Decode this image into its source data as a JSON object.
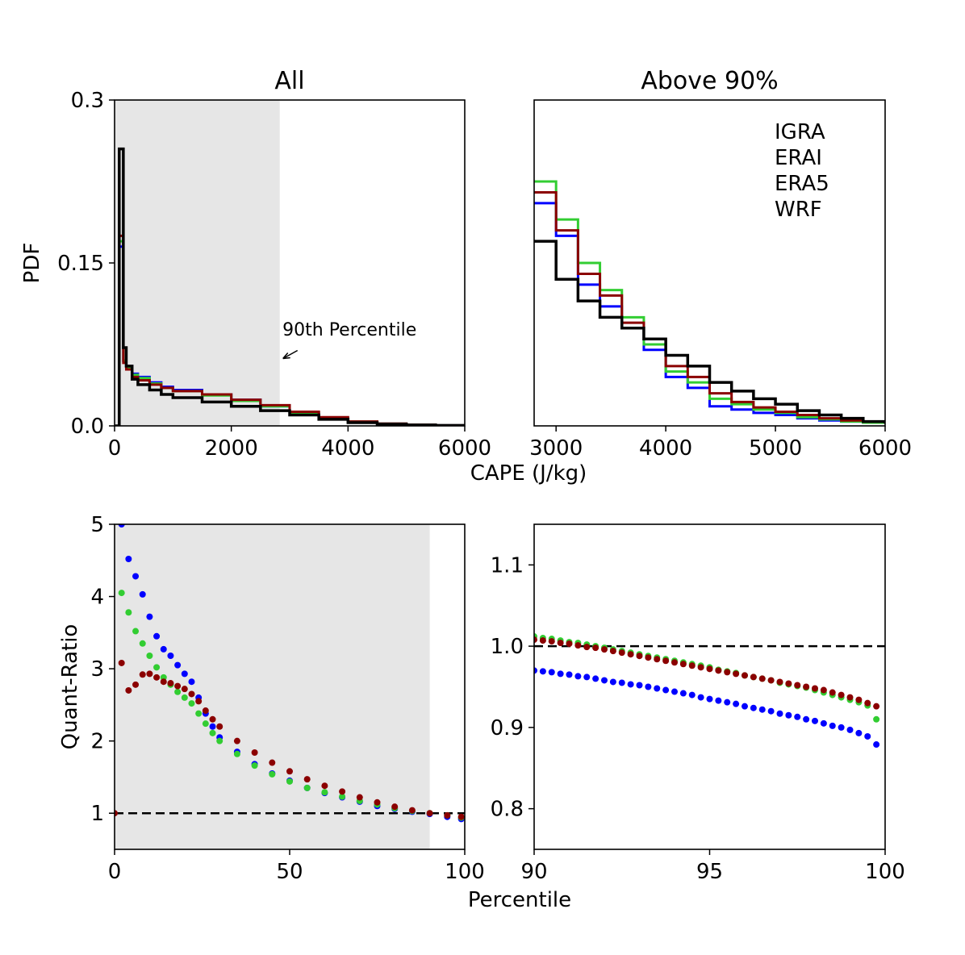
{
  "colors": {
    "IGRA": "#000000",
    "ERAI": "#0000ff",
    "ERA5": "#32cd32",
    "WRF": "#8b0000",
    "shade": "#e6e6e6"
  },
  "chart_data": [
    {
      "id": "top-left",
      "type": "line",
      "step": true,
      "title": "All",
      "xlabel": "",
      "ylabel": "PDF",
      "xlim": [
        0,
        6000
      ],
      "ylim": [
        0,
        0.3
      ],
      "xticks": [
        0,
        2000,
        4000,
        6000
      ],
      "xtick_labels": [
        "0",
        "2000",
        "4000",
        "6000"
      ],
      "yticks": [
        0,
        0.15,
        0.3
      ],
      "ytick_labels": [
        "0.0",
        "0.15",
        "0.3"
      ],
      "shade_x": [
        0,
        2830
      ],
      "annotation": {
        "text": "90th Percentile",
        "x": 2850,
        "y": 0.083,
        "arrow_to": [
          2830,
          0.062
        ]
      },
      "series": [
        {
          "name": "ERAI",
          "x": [
            0,
            80,
            150,
            200,
            300,
            400,
            600,
            800,
            1000,
            1500,
            2000,
            2500,
            3000,
            3500,
            4000,
            4500,
            5000,
            5500,
            6000
          ],
          "y": [
            0,
            0.165,
            0.06,
            0.055,
            0.048,
            0.045,
            0.04,
            0.036,
            0.033,
            0.029,
            0.024,
            0.018,
            0.012,
            0.007,
            0.004,
            0.002,
            0.001,
            0.0005,
            0.0003
          ]
        },
        {
          "name": "ERA5",
          "x": [
            0,
            80,
            150,
            200,
            300,
            400,
            600,
            800,
            1000,
            1500,
            2000,
            2500,
            3000,
            3500,
            4000,
            4500,
            5000,
            5500,
            6000
          ],
          "y": [
            0,
            0.17,
            0.06,
            0.054,
            0.047,
            0.044,
            0.039,
            0.035,
            0.032,
            0.028,
            0.023,
            0.018,
            0.012,
            0.007,
            0.004,
            0.002,
            0.001,
            0.0005,
            0.0003
          ]
        },
        {
          "name": "WRF",
          "x": [
            0,
            80,
            150,
            200,
            300,
            400,
            600,
            800,
            1000,
            1500,
            2000,
            2500,
            3000,
            3500,
            4000,
            4500,
            5000,
            5500,
            6000
          ],
          "y": [
            0,
            0.175,
            0.058,
            0.052,
            0.045,
            0.042,
            0.038,
            0.035,
            0.032,
            0.029,
            0.024,
            0.019,
            0.013,
            0.008,
            0.004,
            0.002,
            0.001,
            0.0005,
            0.0003
          ]
        },
        {
          "name": "IGRA",
          "x": [
            0,
            80,
            150,
            200,
            300,
            400,
            600,
            800,
            1000,
            1500,
            2000,
            2500,
            3000,
            3500,
            4000,
            4500,
            5000,
            5500,
            6000
          ],
          "y": [
            0,
            0.255,
            0.072,
            0.055,
            0.043,
            0.038,
            0.033,
            0.029,
            0.026,
            0.022,
            0.018,
            0.014,
            0.01,
            0.006,
            0.003,
            0.0015,
            0.0008,
            0.0004,
            0.0002
          ]
        }
      ]
    },
    {
      "id": "top-right",
      "type": "line",
      "step": true,
      "title": "Above 90%",
      "xlabel": "CAPE (J/kg)",
      "ylabel": "",
      "xlim": [
        2800,
        6000
      ],
      "ylim": [
        0,
        0.3
      ],
      "xticks": [
        3000,
        4000,
        5000,
        6000
      ],
      "xtick_labels": [
        "3000",
        "4000",
        "5000",
        "6000"
      ],
      "yticks": [],
      "ytick_labels": [],
      "legend": {
        "placement": "top-right",
        "entries": [
          "IGRA",
          "ERAI",
          "ERA5",
          "WRF"
        ]
      },
      "series": [
        {
          "name": "ERAI",
          "x": [
            2800,
            3000,
            3200,
            3400,
            3600,
            3800,
            4000,
            4200,
            4400,
            4600,
            4800,
            5000,
            5200,
            5400,
            5600,
            5800,
            6000
          ],
          "y": [
            0.205,
            0.175,
            0.13,
            0.11,
            0.09,
            0.07,
            0.045,
            0.035,
            0.018,
            0.015,
            0.012,
            0.01,
            0.007,
            0.005,
            0.004,
            0.003,
            0.002
          ]
        },
        {
          "name": "ERA5",
          "x": [
            2800,
            3000,
            3200,
            3400,
            3600,
            3800,
            4000,
            4200,
            4400,
            4600,
            4800,
            5000,
            5200,
            5400,
            5600,
            5800,
            6000
          ],
          "y": [
            0.225,
            0.19,
            0.15,
            0.125,
            0.1,
            0.075,
            0.05,
            0.04,
            0.025,
            0.02,
            0.015,
            0.012,
            0.008,
            0.006,
            0.004,
            0.003,
            0.002
          ]
        },
        {
          "name": "WRF",
          "x": [
            2800,
            3000,
            3200,
            3400,
            3600,
            3800,
            4000,
            4200,
            4400,
            4600,
            4800,
            5000,
            5200,
            5400,
            5600,
            5800,
            6000
          ],
          "y": [
            0.215,
            0.18,
            0.14,
            0.12,
            0.095,
            0.08,
            0.055,
            0.045,
            0.03,
            0.022,
            0.017,
            0.013,
            0.01,
            0.007,
            0.005,
            0.004,
            0.003
          ]
        },
        {
          "name": "IGRA",
          "x": [
            2800,
            3000,
            3200,
            3400,
            3600,
            3800,
            4000,
            4200,
            4400,
            4600,
            4800,
            5000,
            5200,
            5400,
            5600,
            5800,
            6000
          ],
          "y": [
            0.17,
            0.135,
            0.115,
            0.1,
            0.09,
            0.08,
            0.065,
            0.055,
            0.04,
            0.032,
            0.025,
            0.02,
            0.014,
            0.01,
            0.007,
            0.004,
            0.002
          ]
        }
      ]
    },
    {
      "id": "bottom-left",
      "type": "scatter",
      "title": "",
      "xlabel": "",
      "ylabel": "Quant-Ratio",
      "xlim": [
        0,
        100
      ],
      "ylim": [
        0.5,
        5
      ],
      "xticks": [
        0,
        50,
        100
      ],
      "xtick_labels": [
        "0",
        "50",
        "100"
      ],
      "yticks": [
        1,
        2,
        3,
        4,
        5
      ],
      "ytick_labels": [
        "1",
        "2",
        "3",
        "4",
        "5"
      ],
      "shade_x": [
        0,
        90
      ],
      "hline": 1,
      "series": [
        {
          "name": "ERAI",
          "x": [
            2,
            4,
            6,
            8,
            10,
            12,
            14,
            16,
            18,
            20,
            22,
            24,
            26,
            28,
            30,
            35,
            40,
            45,
            50,
            55,
            60,
            65,
            70,
            75,
            80,
            85,
            90,
            95,
            99
          ],
          "y": [
            5.0,
            4.52,
            4.28,
            4.03,
            3.72,
            3.45,
            3.27,
            3.18,
            3.05,
            2.93,
            2.82,
            2.6,
            2.38,
            2.2,
            2.05,
            1.85,
            1.68,
            1.55,
            1.45,
            1.35,
            1.28,
            1.22,
            1.16,
            1.1,
            1.06,
            1.02,
            0.99,
            0.95,
            0.92
          ]
        },
        {
          "name": "ERA5",
          "x": [
            2,
            4,
            6,
            8,
            10,
            12,
            14,
            16,
            18,
            20,
            22,
            24,
            26,
            28,
            30,
            35,
            40,
            45,
            50,
            55,
            60,
            65,
            70,
            75,
            80,
            85,
            90,
            95,
            99
          ],
          "y": [
            4.05,
            3.78,
            3.52,
            3.35,
            3.18,
            3.02,
            2.88,
            2.78,
            2.68,
            2.6,
            2.52,
            2.38,
            2.24,
            2.11,
            2.0,
            1.82,
            1.66,
            1.54,
            1.44,
            1.35,
            1.29,
            1.23,
            1.17,
            1.12,
            1.07,
            1.03,
            1.0,
            0.97,
            0.94
          ]
        },
        {
          "name": "WRF",
          "x": [
            0,
            2,
            4,
            6,
            8,
            10,
            12,
            14,
            16,
            18,
            20,
            22,
            24,
            26,
            28,
            30,
            35,
            40,
            45,
            50,
            55,
            60,
            65,
            70,
            75,
            80,
            85,
            90,
            95,
            99
          ],
          "y": [
            1.0,
            3.08,
            2.7,
            2.78,
            2.92,
            2.93,
            2.88,
            2.82,
            2.8,
            2.76,
            2.72,
            2.65,
            2.55,
            2.42,
            2.3,
            2.2,
            2.0,
            1.84,
            1.7,
            1.58,
            1.47,
            1.38,
            1.3,
            1.22,
            1.15,
            1.09,
            1.04,
            1.0,
            0.97,
            0.95
          ]
        }
      ]
    },
    {
      "id": "bottom-right",
      "type": "scatter",
      "title": "",
      "xlabel": "Percentile",
      "ylabel": "",
      "xlim": [
        90,
        100
      ],
      "ylim": [
        0.75,
        1.15
      ],
      "xticks": [
        90,
        95,
        100
      ],
      "xtick_labels": [
        "90",
        "95",
        "100"
      ],
      "yticks": [
        0.8,
        0.9,
        1.0,
        1.1
      ],
      "ytick_labels": [
        "0.8",
        "0.9",
        "1.0",
        "1.1"
      ],
      "hline": 1.0,
      "series": [
        {
          "name": "ERAI",
          "x": [
            90,
            90.25,
            90.5,
            90.75,
            91,
            91.25,
            91.5,
            91.75,
            92,
            92.25,
            92.5,
            92.75,
            93,
            93.25,
            93.5,
            93.75,
            94,
            94.25,
            94.5,
            94.75,
            95,
            95.25,
            95.5,
            95.75,
            96,
            96.25,
            96.5,
            96.75,
            97,
            97.25,
            97.5,
            97.75,
            98,
            98.25,
            98.5,
            98.75,
            99,
            99.25,
            99.5,
            99.75
          ],
          "y": [
            0.97,
            0.969,
            0.968,
            0.966,
            0.965,
            0.963,
            0.962,
            0.96,
            0.958,
            0.956,
            0.955,
            0.953,
            0.952,
            0.95,
            0.948,
            0.946,
            0.944,
            0.942,
            0.94,
            0.937,
            0.935,
            0.933,
            0.931,
            0.929,
            0.926,
            0.924,
            0.922,
            0.92,
            0.917,
            0.915,
            0.913,
            0.91,
            0.908,
            0.905,
            0.902,
            0.9,
            0.897,
            0.893,
            0.889,
            0.879
          ]
        },
        {
          "name": "ERA5",
          "x": [
            90,
            90.25,
            90.5,
            90.75,
            91,
            91.25,
            91.5,
            91.75,
            92,
            92.25,
            92.5,
            92.75,
            93,
            93.25,
            93.5,
            93.75,
            94,
            94.25,
            94.5,
            94.75,
            95,
            95.25,
            95.5,
            95.75,
            96,
            96.25,
            96.5,
            96.75,
            97,
            97.25,
            97.5,
            97.75,
            98,
            98.25,
            98.5,
            98.75,
            99,
            99.25,
            99.5,
            99.75
          ],
          "y": [
            1.012,
            1.01,
            1.009,
            1.007,
            1.005,
            1.004,
            1.002,
            1.0,
            0.998,
            0.996,
            0.994,
            0.992,
            0.99,
            0.988,
            0.986,
            0.984,
            0.982,
            0.98,
            0.978,
            0.976,
            0.974,
            0.971,
            0.969,
            0.967,
            0.964,
            0.962,
            0.96,
            0.958,
            0.955,
            0.953,
            0.951,
            0.949,
            0.946,
            0.943,
            0.94,
            0.937,
            0.934,
            0.931,
            0.927,
            0.91
          ]
        },
        {
          "name": "WRF",
          "x": [
            90,
            90.25,
            90.5,
            90.75,
            91,
            91.25,
            91.5,
            91.75,
            92,
            92.25,
            92.5,
            92.75,
            93,
            93.25,
            93.5,
            93.75,
            94,
            94.25,
            94.5,
            94.75,
            95,
            95.25,
            95.5,
            95.75,
            96,
            96.25,
            96.5,
            96.75,
            97,
            97.25,
            97.5,
            97.75,
            98,
            98.25,
            98.5,
            98.75,
            99,
            99.25,
            99.5,
            99.75
          ],
          "y": [
            1.008,
            1.007,
            1.006,
            1.004,
            1.003,
            1.001,
            0.999,
            0.998,
            0.996,
            0.994,
            0.992,
            0.99,
            0.988,
            0.986,
            0.984,
            0.982,
            0.98,
            0.978,
            0.976,
            0.974,
            0.972,
            0.97,
            0.968,
            0.966,
            0.964,
            0.962,
            0.96,
            0.958,
            0.956,
            0.954,
            0.952,
            0.95,
            0.948,
            0.946,
            0.943,
            0.94,
            0.937,
            0.934,
            0.93,
            0.926
          ]
        }
      ]
    }
  ]
}
